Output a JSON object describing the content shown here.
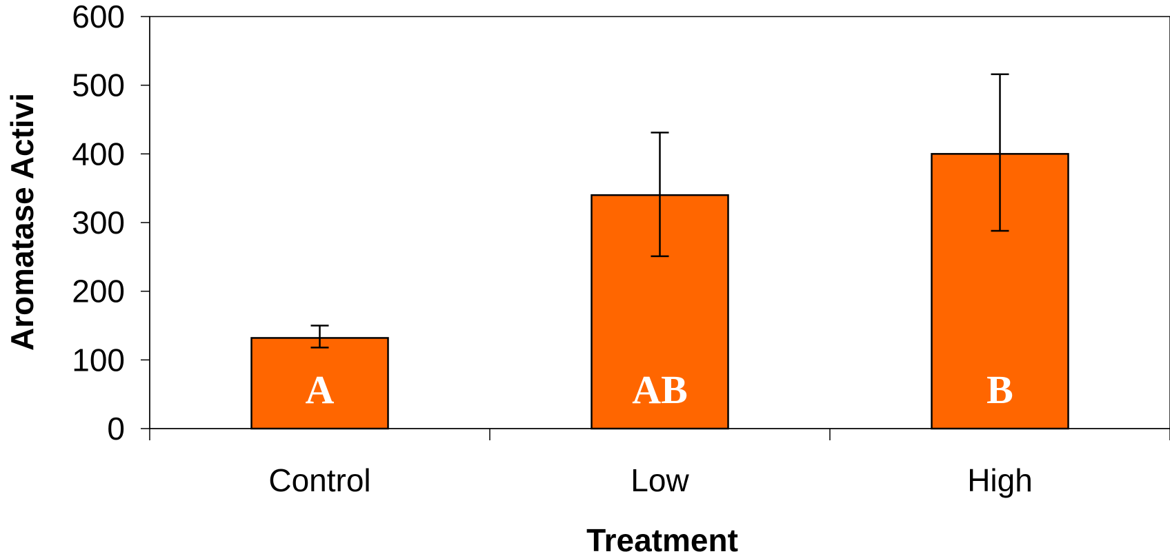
{
  "chart_data": {
    "type": "bar",
    "xlabel": "Treatment",
    "ylabel": "Aromatase Activi",
    "categories": [
      "Control",
      "Low",
      "High"
    ],
    "values": [
      132,
      340,
      400
    ],
    "error_upper": [
      150,
      431,
      516
    ],
    "error_lower": [
      118,
      251,
      288
    ],
    "bar_labels": [
      "A",
      "AB",
      "B"
    ],
    "ylim": [
      0,
      600
    ],
    "yticks": [
      0,
      100,
      200,
      300,
      400,
      500,
      600
    ],
    "grid": false,
    "legend": "none",
    "bar_color": "#FF6600"
  }
}
